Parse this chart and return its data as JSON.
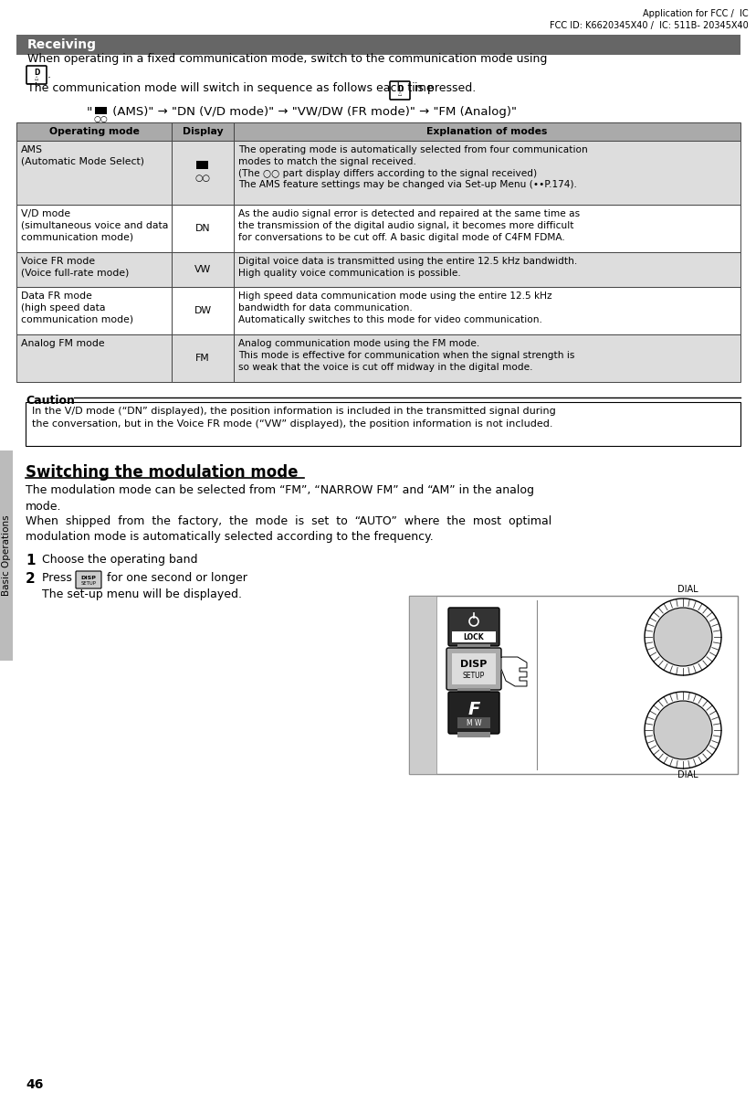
{
  "page_number": "46",
  "header_right_line1": "Application for FCC /  IC",
  "header_right_line2": "FCC ID: K6620345X40 /  IC: 511B- 20345X40",
  "section_title": "Receiving",
  "section_title_bg": "#666666",
  "section_title_color": "#ffffff",
  "table_header_bg": "#aaaaaa",
  "table_headers": [
    "Operating mode",
    "Display",
    "Explanation of modes"
  ],
  "table_rows": [
    {
      "col1": "AMS\n(Automatic Mode Select)",
      "col2_special": true,
      "col3": "The operating mode is automatically selected from four communication\nmodes to match the signal received.\n(The ○○ part display differs according to the signal received)\nThe AMS feature settings may be changed via Set-up Menu (••P.174).",
      "bg": "#dddddd"
    },
    {
      "col1": "V/D mode\n(simultaneous voice and data\ncommunication mode)",
      "col2": "DN",
      "col3": "As the audio signal error is detected and repaired at the same time as\nthe transmission of the digital audio signal, it becomes more difficult\nfor conversations to be cut off. A basic digital mode of C4FM FDMA.",
      "bg": "#ffffff"
    },
    {
      "col1": "Voice FR mode\n(Voice full-rate mode)",
      "col2": "VW",
      "col3": "Digital voice data is transmitted using the entire 12.5 kHz bandwidth.\nHigh quality voice communication is possible.",
      "bg": "#dddddd"
    },
    {
      "col1": "Data FR mode\n(high speed data\ncommunication mode)",
      "col2": "DW",
      "col3": "High speed data communication mode using the entire 12.5 kHz\nbandwidth for data communication.\nAutomatically switches to this mode for video communication.",
      "bg": "#ffffff"
    },
    {
      "col1": "Analog FM mode",
      "col2": "FM",
      "col3": "Analog communication mode using the FM mode.\nThis mode is effective for communication when the signal strength is\nso weak that the voice is cut off midway in the digital mode.",
      "bg": "#dddddd"
    }
  ],
  "caution_title": "Caution",
  "caution_text": "In the V/D mode (“DN” displayed), the position information is included in the transmitted signal during\nthe conversation, but in the Voice FR mode (“VW” displayed), the position information is not included.",
  "switching_title": "Switching the modulation mode",
  "switching_para1": "The modulation mode can be selected from “FM”, “NARROW FM” and “AM” in the analog\nmode.",
  "switching_para2": "When  shipped  from  the  factory,  the  mode  is  set  to  “AUTO”  where  the  most  optimal\nmodulation mode is automatically selected according to the frequency.",
  "step1": "Choose the operating band",
  "step2_b": "The set-up menu will be displayed.",
  "sidebar_text": "Basic Operations",
  "sidebar_bg": "#bbbbbb",
  "bg_color": "#ffffff",
  "body_font_size": 9.0,
  "table_font_size": 7.8
}
